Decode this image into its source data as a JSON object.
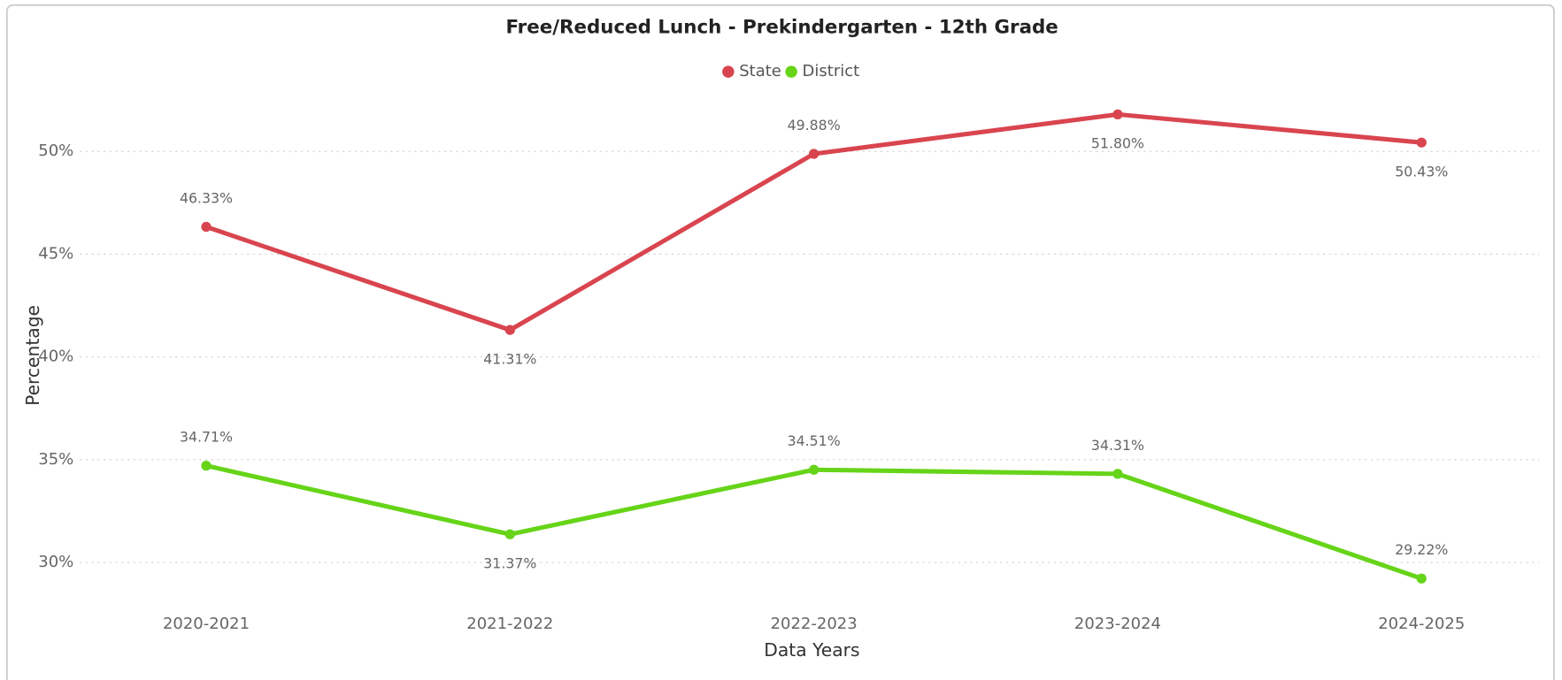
{
  "chart_data": {
    "type": "line",
    "title": "Free/Reduced Lunch - Prekindergarten - 12th Grade",
    "x_label": "Data Years",
    "y_label": "Percentage",
    "categories": [
      "2020-2021",
      "2021-2022",
      "2022-2023",
      "2023-2024",
      "2024-2025"
    ],
    "series": [
      {
        "name": "State",
        "color": "#d9454f",
        "values": [
          46.33,
          41.31,
          49.88,
          51.8,
          50.43
        ],
        "value_labels": [
          "46.33%",
          "41.31%",
          "49.88%",
          "51.80%",
          "50.43%"
        ]
      },
      {
        "name": "District",
        "color": "#66d418",
        "values": [
          34.71,
          31.37,
          34.51,
          34.31,
          29.22
        ],
        "value_labels": [
          "34.71%",
          "31.37%",
          "34.51%",
          "34.31%",
          "29.22%"
        ]
      }
    ],
    "ylim": [
      28,
      53
    ],
    "yticks": [
      {
        "value": 30,
        "label": "30%"
      },
      {
        "value": 35,
        "label": "35%"
      },
      {
        "value": 40,
        "label": "40%"
      },
      {
        "value": 45,
        "label": "45%"
      },
      {
        "value": 50,
        "label": "50%"
      }
    ],
    "grid": true,
    "legend": "top"
  }
}
